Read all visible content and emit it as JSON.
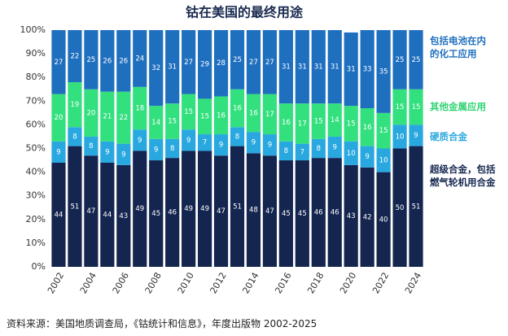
{
  "chart_data": {
    "type": "stacked_bar",
    "title": "钴在美国的最终用途",
    "source": "资料来源：美国地质调查局，《钴统计和信息》，年度出版物 2002-2025",
    "categories": [
      "2002",
      null,
      "2004",
      null,
      "2006",
      null,
      "2008",
      null,
      "2010",
      null,
      "2012",
      null,
      "2014",
      null,
      "2016",
      null,
      "2018",
      null,
      "2020",
      null,
      "2022",
      null,
      "2024"
    ],
    "series": [
      {
        "name": "超级合金，包括燃气轮机用合金",
        "color": "#14254f",
        "values": [
          44,
          51,
          47,
          44,
          43,
          49,
          45,
          46,
          49,
          49,
          47,
          51,
          48,
          47,
          45,
          45,
          46,
          46,
          43,
          42,
          40,
          50,
          51
        ]
      },
      {
        "name": "硬质合金",
        "color": "#29a8e0",
        "values": [
          9,
          8,
          8,
          9,
          9,
          9,
          9,
          8,
          9,
          7,
          9,
          8,
          9,
          9,
          8,
          7,
          8,
          9,
          10,
          9,
          10,
          10,
          9
        ]
      },
      {
        "name": "其他金属应用",
        "color": "#33e07e",
        "values": [
          20,
          19,
          20,
          21,
          22,
          18,
          14,
          15,
          15,
          15,
          16,
          16,
          16,
          17,
          16,
          17,
          15,
          14,
          15,
          16,
          15,
          15,
          15
        ]
      },
      {
        "name": "包括电池在内的化工应用",
        "color": "#1f6fbf",
        "values": [
          27,
          22,
          25,
          26,
          26,
          24,
          32,
          31,
          27,
          29,
          28,
          25,
          27,
          27,
          31,
          31,
          31,
          31,
          31,
          33,
          35,
          25,
          25
        ]
      }
    ],
    "ylim": [
      0,
      100
    ],
    "yticks": [
      {
        "value": 0,
        "label": "0%"
      },
      {
        "value": 10,
        "label": "10%"
      },
      {
        "value": 20,
        "label": "20%"
      },
      {
        "value": 30,
        "label": "30%"
      },
      {
        "value": 40,
        "label": "40%"
      },
      {
        "value": 50,
        "label": "50%"
      },
      {
        "value": 60,
        "label": "60%"
      },
      {
        "value": 70,
        "label": "70%"
      },
      {
        "value": 80,
        "label": "80%"
      },
      {
        "value": 90,
        "label": "90%"
      },
      {
        "value": 100,
        "label": "100%"
      }
    ],
    "grid": false
  }
}
